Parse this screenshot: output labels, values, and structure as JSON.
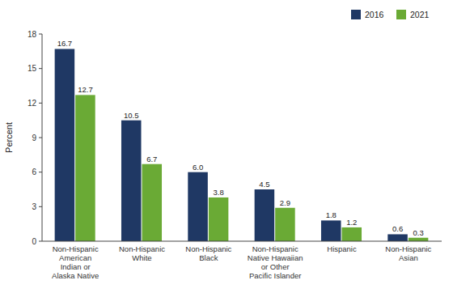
{
  "chart_data": {
    "type": "bar",
    "categories": [
      "Non-Hispanic\nAmerican\nIndian or\nAlaska Native",
      "Non-Hispanic\nWhite",
      "Non-Hispanic\nBlack",
      "Non-Hispanic\nNative Hawaiian\nor Other\nPacific Islander",
      "Hispanic",
      "Non-Hispanic\nAsian"
    ],
    "series": [
      {
        "name": "2016",
        "color": "#1f3864",
        "values": [
          16.7,
          10.5,
          6.0,
          4.5,
          1.8,
          0.6
        ],
        "value_labels": [
          "16.7",
          "10.5",
          "6.0",
          "4.5",
          "1.8",
          "0.6"
        ]
      },
      {
        "name": "2021",
        "color": "#6aaa35",
        "values": [
          12.7,
          6.7,
          3.8,
          2.9,
          1.2,
          0.3
        ]
      }
    ],
    "ylabel": "Percent",
    "ylim": [
      0,
      18
    ],
    "yticks": [
      0,
      3,
      6,
      9,
      12,
      15,
      18
    ],
    "grid": false,
    "legend": "upper right",
    "data_labels": true
  }
}
